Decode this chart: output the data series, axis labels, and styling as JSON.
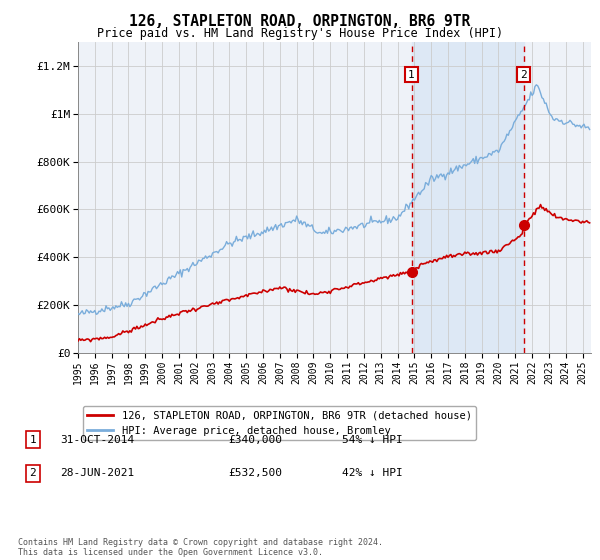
{
  "title": "126, STAPLETON ROAD, ORPINGTON, BR6 9TR",
  "subtitle": "Price paid vs. HM Land Registry's House Price Index (HPI)",
  "legend_label_red": "126, STAPLETON ROAD, ORPINGTON, BR6 9TR (detached house)",
  "legend_label_blue": "HPI: Average price, detached house, Bromley",
  "annotation1_date": "31-OCT-2014",
  "annotation1_price": "£340,000",
  "annotation1_hpi": "54% ↓ HPI",
  "annotation1_year": 2014.83,
  "annotation1_price_val": 340000,
  "annotation2_date": "28-JUN-2021",
  "annotation2_price": "£532,500",
  "annotation2_hpi": "42% ↓ HPI",
  "annotation2_year": 2021.49,
  "annotation2_price_val": 532500,
  "ylabel_ticks": [
    "£0",
    "£200K",
    "£400K",
    "£600K",
    "£800K",
    "£1M",
    "£1.2M"
  ],
  "ytick_vals": [
    0,
    200000,
    400000,
    600000,
    800000,
    1000000,
    1200000
  ],
  "ylim": [
    0,
    1300000
  ],
  "xlim_start": 1995,
  "xlim_end": 2025.5,
  "footer": "Contains HM Land Registry data © Crown copyright and database right 2024.\nThis data is licensed under the Open Government Licence v3.0.",
  "background_color": "#ffffff",
  "plot_bg_color": "#eef2f8",
  "grid_color": "#cccccc",
  "red_color": "#cc0000",
  "blue_color": "#7aaddb",
  "shaded_region_color": "#dde8f5"
}
